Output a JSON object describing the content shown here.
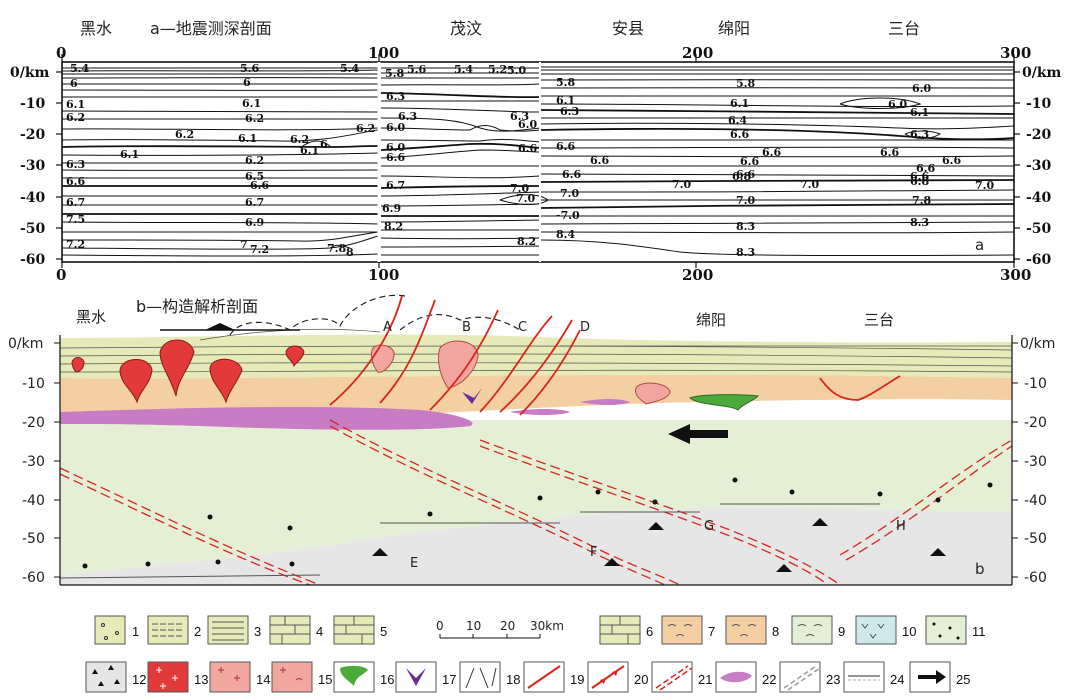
{
  "section_a": {
    "title": "a—地震测深剖面",
    "places": [
      "黑水",
      "茂汶",
      "安县",
      "绵阳",
      "三台"
    ],
    "x_ticks": [
      "0",
      "100",
      "200",
      "300"
    ],
    "y_ticks_left": [
      "0/km",
      "-10",
      "-20",
      "-30",
      "-40",
      "-50",
      "-60"
    ],
    "y_ticks_right": [
      "0/km",
      "-10",
      "-20",
      "-30",
      "-40",
      "-50",
      "-60"
    ],
    "corner_label": "a",
    "velocity_labels": [
      "5.4",
      "5.6",
      "5.4",
      "6",
      "6",
      "5.8",
      "5.6",
      "5.4",
      "5.2",
      "5.0",
      "5.8",
      "5.8",
      "6.0",
      "6.1",
      "6.1",
      "6.3",
      "6.1",
      "6.1",
      "6.0",
      "6.2",
      "6.2",
      "6.3",
      "6.3",
      "6.3",
      "6.0",
      "6.1",
      "6.2",
      "6.1",
      "6.0",
      "6.2",
      "6.4",
      "6.3",
      "6.2",
      "6.1",
      "6",
      "6.0",
      "6.6",
      "6.6",
      "6.6",
      "6.1",
      "6.6",
      "6.6",
      "6.6",
      "6.6",
      "6.6",
      "6.3",
      "6.2",
      "6.6",
      "6.6",
      "6.6",
      "6.6",
      "6.5",
      "6.6",
      "6.6",
      "6.6",
      "6.8",
      "6.8",
      "6.7",
      "6.7",
      "7.0",
      "7.0",
      "7.0",
      "7.0",
      "7.0",
      "6.7",
      "7.0",
      "7.0",
      "7.8",
      "7.5",
      "6.9",
      "6.9",
      "-7.0",
      "8.2",
      "8.3",
      "8.3",
      "7.2",
      "7",
      "7.2",
      "7.8",
      "8",
      "8.3",
      "8.2",
      "8.4"
    ]
  },
  "section_b": {
    "title": "b—构造解析剖面",
    "places": [
      "黑水",
      "绵阳",
      "三台"
    ],
    "fault_labels": [
      "A",
      "B",
      "C",
      "D"
    ],
    "block_labels": [
      "E",
      "F",
      "G",
      "H"
    ],
    "y_ticks_left": [
      "0/km",
      "-10",
      "-20",
      "-30",
      "-40",
      "-50",
      "-60"
    ],
    "y_ticks_right": [
      "0/km",
      "-10",
      "-20",
      "-30",
      "-40",
      "-50",
      "-60"
    ],
    "corner_label": "b"
  },
  "scale_bar": {
    "ticks": [
      "0",
      "10",
      "20",
      "30km"
    ]
  },
  "legend": [
    "1",
    "2",
    "3",
    "4",
    "5",
    "6",
    "7",
    "8",
    "9",
    "10",
    "11",
    "12",
    "13",
    "14",
    "15",
    "16",
    "17",
    "18",
    "19",
    "20",
    "21",
    "22",
    "23",
    "24",
    "25"
  ],
  "colors": {
    "red_fault": "#d8261c",
    "sediment_green": "#e6eab9",
    "upper_orange": "#f3cfa3",
    "lower_green": "#e4efd6",
    "gray_mantle": "#e6e6e6",
    "purple_layer": "#c77cc3",
    "granite_red": "#e23a3a",
    "pink_body": "#f2a6a0",
    "green_body": "#4caa3a"
  }
}
